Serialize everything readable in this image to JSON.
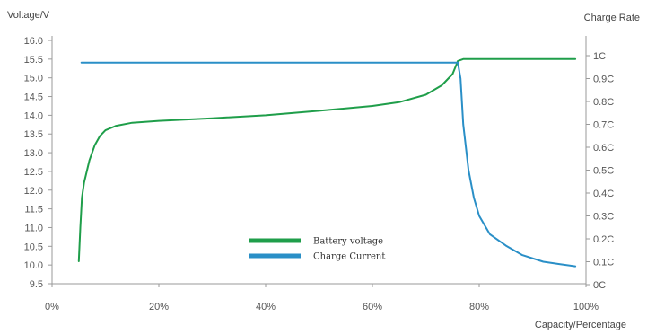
{
  "chart_data": {
    "type": "line",
    "y_left_label": "Voltage/V",
    "y_right_label": "Charge Rate",
    "x_label": "Capacity/Percentage",
    "x_ticks": [
      "0%",
      "20%",
      "40%",
      "60%",
      "80%",
      "100%"
    ],
    "y_left_ticks": [
      "16.0",
      "15.5",
      "15.0",
      "14.5",
      "14.0",
      "13.5",
      "13.0",
      "12.5",
      "12.0",
      "11.5",
      "11.0",
      "10.5",
      "10.0",
      "9.5"
    ],
    "y_right_ticks": [
      "1C",
      "0.9C",
      "0.8C",
      "0.7C",
      "0.6C",
      "0.5C",
      "0.4C",
      "0.3C",
      "0.2C",
      "0.1C",
      "0C"
    ],
    "xlim": [
      0,
      100
    ],
    "ylim_left": [
      9.5,
      16.0
    ],
    "ylim_right": [
      0,
      1.0
    ],
    "grid": false,
    "legend": {
      "placement": "center-bottom",
      "items": [
        {
          "label": "Battery voltage",
          "color": "#1f9e4a"
        },
        {
          "label": "Charge Current",
          "color": "#2a8fc7"
        }
      ]
    },
    "series": [
      {
        "name": "Battery voltage",
        "axis": "left",
        "color": "#1f9e4a",
        "points": [
          [
            5,
            10.1
          ],
          [
            5.3,
            11.0
          ],
          [
            5.6,
            11.8
          ],
          [
            6,
            12.2
          ],
          [
            7,
            12.8
          ],
          [
            8,
            13.2
          ],
          [
            9,
            13.45
          ],
          [
            10,
            13.6
          ],
          [
            12,
            13.72
          ],
          [
            15,
            13.8
          ],
          [
            20,
            13.85
          ],
          [
            30,
            13.92
          ],
          [
            40,
            14.0
          ],
          [
            50,
            14.12
          ],
          [
            60,
            14.25
          ],
          [
            65,
            14.35
          ],
          [
            70,
            14.55
          ],
          [
            73,
            14.8
          ],
          [
            75,
            15.1
          ],
          [
            76,
            15.45
          ],
          [
            77,
            15.5
          ],
          [
            80,
            15.5
          ],
          [
            90,
            15.5
          ],
          [
            98,
            15.5
          ]
        ]
      },
      {
        "name": "Charge Current",
        "axis": "right",
        "color": "#2a8fc7",
        "points": [
          [
            5.5,
            0.97
          ],
          [
            20,
            0.97
          ],
          [
            40,
            0.97
          ],
          [
            60,
            0.97
          ],
          [
            76,
            0.97
          ],
          [
            76.5,
            0.9
          ],
          [
            77,
            0.7
          ],
          [
            78,
            0.5
          ],
          [
            79,
            0.38
          ],
          [
            80,
            0.3
          ],
          [
            82,
            0.22
          ],
          [
            85,
            0.17
          ],
          [
            88,
            0.13
          ],
          [
            92,
            0.1
          ],
          [
            95,
            0.09
          ],
          [
            98,
            0.08
          ]
        ]
      }
    ]
  }
}
